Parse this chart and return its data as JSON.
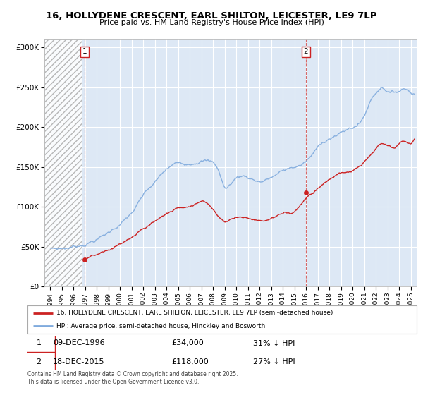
{
  "title_line1": "16, HOLLYDENE CRESCENT, EARL SHILTON, LEICESTER, LE9 7LP",
  "title_line2": "Price paid vs. HM Land Registry's House Price Index (HPI)",
  "yticks": [
    0,
    50000,
    100000,
    150000,
    200000,
    250000,
    300000
  ],
  "ytick_labels": [
    "£0",
    "£50K",
    "£100K",
    "£150K",
    "£200K",
    "£250K",
    "£300K"
  ],
  "ylim": [
    0,
    310000
  ],
  "xlim_start": 1993.5,
  "xlim_end": 2025.5,
  "hpi_color": "#7faadd",
  "price_color": "#cc2222",
  "fig_bg_color": "#ffffff",
  "plot_bg_color": "#dde8f5",
  "grid_color": "#ffffff",
  "marker1_x": 1996.94,
  "marker1_y": 34000,
  "marker2_x": 2015.96,
  "marker2_y": 118000,
  "hatch_end_x": 1996.7,
  "legend_line1": "16, HOLLYDENE CRESCENT, EARL SHILTON, LEICESTER, LE9 7LP (semi-detached house)",
  "legend_line2": "HPI: Average price, semi-detached house, Hinckley and Bosworth",
  "note1_label": "1",
  "note1_date": "09-DEC-1996",
  "note1_price": "£34,000",
  "note1_hpi": "31% ↓ HPI",
  "note2_label": "2",
  "note2_date": "18-DEC-2015",
  "note2_price": "£118,000",
  "note2_hpi": "27% ↓ HPI",
  "copyright": "Contains HM Land Registry data © Crown copyright and database right 2025.\nThis data is licensed under the Open Government Licence v3.0."
}
